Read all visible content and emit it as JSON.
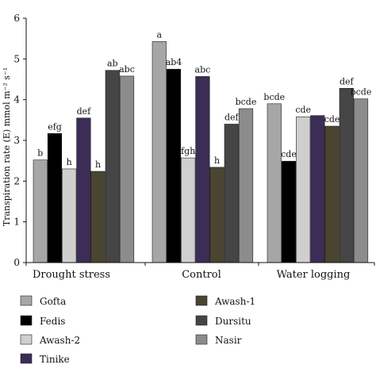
{
  "chart_data": {
    "type": "bar",
    "title": "",
    "xlabel": "",
    "ylabel": "Transpiration rate (E) mmol m⁻² s⁻¹",
    "ylim": [
      0,
      6
    ],
    "yticks": [
      0,
      1,
      2,
      3,
      4,
      5,
      6
    ],
    "grid": false,
    "legend_position": "bottom",
    "categories": [
      "Drought stress",
      "Control",
      "Water logging"
    ],
    "series": [
      {
        "name": "Gofta",
        "color": "#a6a6a6",
        "values": [
          2.52,
          5.43,
          3.9
        ],
        "labels": [
          "b",
          "a",
          "bcde"
        ]
      },
      {
        "name": "Fedis",
        "color": "#000000",
        "values": [
          3.17,
          4.75,
          2.49
        ],
        "labels": [
          "efg",
          "ab4",
          "cde"
        ]
      },
      {
        "name": "Awash-2",
        "color": "#cfcfcf",
        "values": [
          2.3,
          2.57,
          3.58
        ],
        "labels": [
          "h",
          "fgh",
          "cde"
        ]
      },
      {
        "name": "Tinike",
        "color": "#3b2d55",
        "values": [
          3.55,
          4.57,
          3.61
        ],
        "labels": [
          "def",
          "abc",
          ""
        ]
      },
      {
        "name": "Awash-1",
        "color": "#4a4530",
        "values": [
          2.24,
          2.34,
          3.35
        ],
        "labels": [
          "h",
          "h",
          "cde"
        ]
      },
      {
        "name": "Dursitu",
        "color": "#454545",
        "values": [
          4.72,
          3.4,
          4.28
        ],
        "labels": [
          "ab",
          "def",
          "def"
        ]
      },
      {
        "name": "Nasir",
        "color": "#8c8c8c",
        "values": [
          4.58,
          3.78,
          4.02
        ],
        "labels": [
          "abc",
          "bcde",
          "bcde"
        ]
      }
    ]
  }
}
